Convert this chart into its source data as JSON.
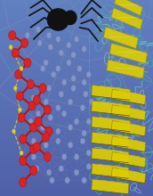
{
  "bg_color": "#5060a8",
  "web_color": "#8090b8",
  "web_alpha": 0.55,
  "atom_blue_color": "#8899cc",
  "atom_blue_edge": "#6677aa",
  "atom_red_color": "#dd2222",
  "atom_yellow_color": "#ddcc44",
  "bond_blue_color": "#6677aa",
  "bond_red_color": "#cc1111",
  "beta_sheet_yellow": "#ddcc00",
  "beta_sheet_yellow2": "#eecc22",
  "beta_sheet_teal": "#44aaaa",
  "beta_sheet_teal2": "#66ccbb",
  "beta_sheet_white": "#ddeedd",
  "spider_color": "#111111"
}
